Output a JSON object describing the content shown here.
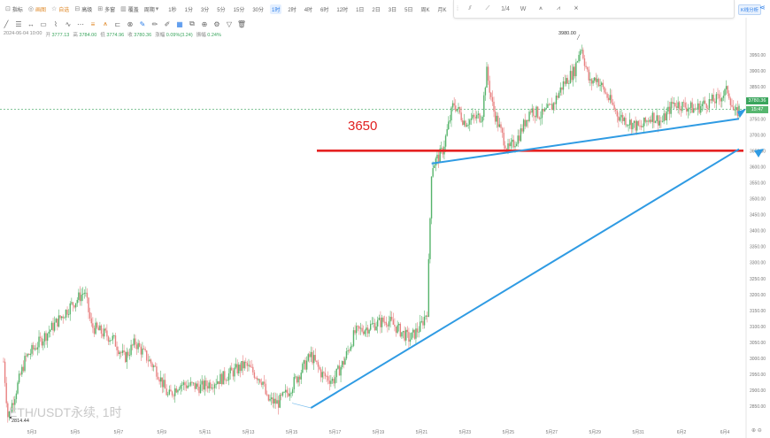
{
  "toolbar": {
    "items": [
      {
        "label": "指标",
        "icon": "indicator-icon"
      },
      {
        "label": "画图",
        "icon": "draw-icon",
        "orange": true
      },
      {
        "label": "自选",
        "icon": "star-icon",
        "orange": true
      },
      {
        "label": "高级",
        "icon": "advanced-icon"
      },
      {
        "label": "多窗",
        "icon": "multiwindow-icon"
      },
      {
        "label": "覆盖",
        "icon": "overlay-icon"
      },
      {
        "label": "周期",
        "icon": "period-icon"
      }
    ],
    "timeframes": [
      "1秒",
      "1分",
      "3分",
      "5分",
      "15分",
      "30分",
      "1时",
      "2时",
      "4时",
      "6时",
      "12时",
      "1日",
      "2日",
      "3日",
      "5日",
      "周K",
      "月K",
      "年K"
    ],
    "active_timeframe": "1时"
  },
  "toolbar2_icons": [
    "line-icon",
    "horizontal-line-icon",
    "ray-icon",
    "rectangle-icon",
    "fib-icon",
    "path-icon",
    "more-icon",
    "fib-retracement-icon",
    "pitchfork-icon",
    "measure-icon",
    "text-icon",
    "magnet-icon",
    "lock-icon",
    "eye-icon",
    "trash-icon",
    "pointer-icon",
    "pencil-icon",
    "brush-icon",
    "grid-icon",
    "copy-icon",
    "zoom-icon",
    "settings-icon",
    "filter-icon",
    "delete-icon"
  ],
  "ohlc": {
    "date": "2024-06-04 10:00",
    "open_label": "开",
    "open": "3777.13",
    "high_label": "高",
    "high": "3784.00",
    "low_label": "低",
    "low": "3774.96",
    "close_label": "收",
    "close": "3780.36",
    "change_label": "涨幅",
    "change": "0.09%(3.24)",
    "amp_label": "振幅",
    "amp": "0.24%"
  },
  "drawbar": {
    "icons": [
      "drawing-tool-1-icon",
      "drawing-tool-2-icon",
      "drawing-tool-3-icon",
      "w-pattern-icon",
      "drawing-tool-5-icon",
      "drawing-tool-6-icon",
      "drawing-tool-7-icon"
    ],
    "labels": [
      "",
      "",
      "1/4",
      "W",
      "",
      "",
      ""
    ]
  },
  "kline_button": "K线分析",
  "annotation_3650": "3650",
  "watermark": "ETH/USDT永续, 1时",
  "chart_high_label": "3980.00",
  "chart_low_label": "2814.44",
  "last_price": "3780.36",
  "last_price_sub": "15:47",
  "bottom_icons": "⊕ ⊖",
  "chart_data": {
    "type": "candlestick",
    "symbol": "ETH/USDT永续",
    "interval": "1时",
    "ylim": [
      2820,
      4000
    ],
    "yticks": [
      2850,
      2900,
      2950,
      3000,
      3050,
      3100,
      3150,
      3200,
      3250,
      3300,
      3350,
      3400,
      3450,
      3500,
      3550,
      3600,
      3650,
      3700,
      3750,
      3800,
      3850,
      3900,
      3950
    ],
    "xticks": [
      "5月3",
      "5月5",
      "5月7",
      "5月9",
      "5月11",
      "5月13",
      "5月15",
      "5月17",
      "5月19",
      "5月21",
      "5月23",
      "5月25",
      "5月27",
      "5月29",
      "5月31",
      "6月2",
      "6月4"
    ],
    "price_path": [
      [
        0,
        2990
      ],
      [
        0.2,
        2814
      ],
      [
        1,
        3000
      ],
      [
        2,
        3080
      ],
      [
        2.5,
        3120
      ],
      [
        3,
        3160
      ],
      [
        3.7,
        3210
      ],
      [
        4,
        3100
      ],
      [
        5,
        3060
      ],
      [
        5.5,
        3000
      ],
      [
        6,
        3050
      ],
      [
        7,
        2960
      ],
      [
        7.5,
        2880
      ],
      [
        8,
        2920
      ],
      [
        9,
        2910
      ],
      [
        10,
        2940
      ],
      [
        11,
        2980
      ],
      [
        11.8,
        2930
      ],
      [
        12,
        2870
      ],
      [
        12.5,
        2860
      ],
      [
        13,
        2900
      ],
      [
        14,
        3010
      ],
      [
        14.5,
        2950
      ],
      [
        15,
        2930
      ],
      [
        15.5,
        2990
      ],
      [
        16,
        3080
      ],
      [
        17,
        3110
      ],
      [
        17.5,
        3120
      ],
      [
        18,
        3090
      ],
      [
        18.5,
        3060
      ],
      [
        19,
        3100
      ],
      [
        19.3,
        3150
      ],
      [
        19.5,
        3600
      ],
      [
        20,
        3650
      ],
      [
        20.5,
        3800
      ],
      [
        21,
        3740
      ],
      [
        21.8,
        3760
      ],
      [
        22,
        3900
      ],
      [
        22.3,
        3780
      ],
      [
        22.7,
        3700
      ],
      [
        23,
        3650
      ],
      [
        23.5,
        3700
      ],
      [
        24,
        3780
      ],
      [
        24.5,
        3760
      ],
      [
        25,
        3790
      ],
      [
        25.5,
        3860
      ],
      [
        26,
        3900
      ],
      [
        26.3,
        3980
      ],
      [
        26.7,
        3860
      ],
      [
        27,
        3880
      ],
      [
        27.5,
        3820
      ],
      [
        28,
        3760
      ],
      [
        28.5,
        3740
      ],
      [
        29,
        3720
      ],
      [
        29.5,
        3760
      ],
      [
        30,
        3740
      ],
      [
        30.5,
        3800
      ],
      [
        31,
        3790
      ],
      [
        31.5,
        3780
      ],
      [
        32,
        3800
      ],
      [
        32.5,
        3810
      ],
      [
        33,
        3840
      ],
      [
        33.3,
        3760
      ],
      [
        33.5,
        3780
      ]
    ],
    "horizontal_lines": [
      {
        "label": "3650",
        "value": 3650,
        "color": "#e52222"
      }
    ],
    "trend_lines": [
      {
        "from": [
          14,
          2845
        ],
        "to": [
          33.5,
          3655
        ],
        "color": "#2f9be3"
      },
      {
        "from": [
          19.5,
          3610
        ],
        "to": [
          33.5,
          3750
        ],
        "color": "#2f9be3"
      }
    ]
  }
}
